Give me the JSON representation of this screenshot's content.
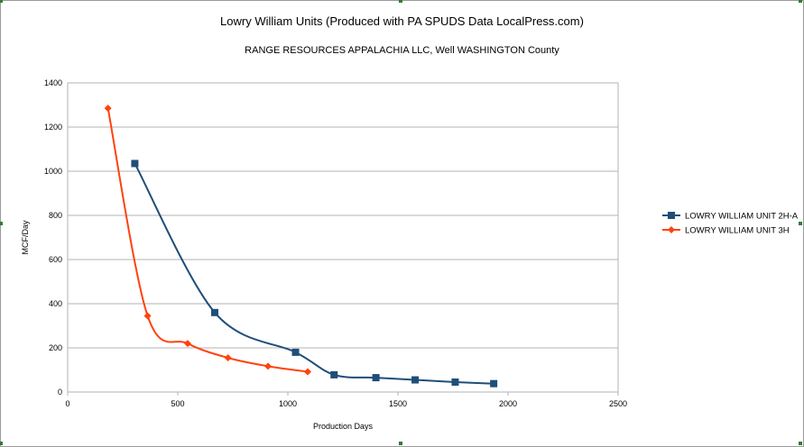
{
  "chart_data": {
    "type": "line",
    "title": "Lowry William Units (Produced with PA SPUDS Data LocalPress.com)",
    "subtitle": "RANGE RESOURCES APPALACHIA LLC, Well  WASHINGTON County",
    "xlabel": "Production Days",
    "ylabel": "MCF/Day",
    "xlim": [
      0,
      2500
    ],
    "ylim": [
      0,
      1400
    ],
    "x_ticks": [
      "0",
      "500",
      "1000",
      "1500",
      "2000",
      "2500"
    ],
    "y_ticks": [
      "0",
      "200",
      "400",
      "600",
      "800",
      "1000",
      "1200",
      "1400"
    ],
    "grid": "horizontal",
    "legend_position": "right",
    "series": [
      {
        "name": "LOWRY WILLIAM UNIT 2H-A",
        "color": "#1f4e79",
        "marker": "square",
        "points": [
          [
            305,
            1035
          ],
          [
            668,
            360
          ],
          [
            1035,
            180
          ],
          [
            1210,
            78
          ],
          [
            1400,
            65
          ],
          [
            1578,
            55
          ],
          [
            1760,
            45
          ],
          [
            1935,
            38
          ]
        ]
      },
      {
        "name": "LOWRY WILLIAM UNIT 3H",
        "color": "#ff420e",
        "marker": "diamond",
        "points": [
          [
            183,
            1285
          ],
          [
            363,
            345
          ],
          [
            545,
            220
          ],
          [
            728,
            155
          ],
          [
            910,
            117
          ],
          [
            1090,
            92
          ]
        ]
      }
    ]
  }
}
